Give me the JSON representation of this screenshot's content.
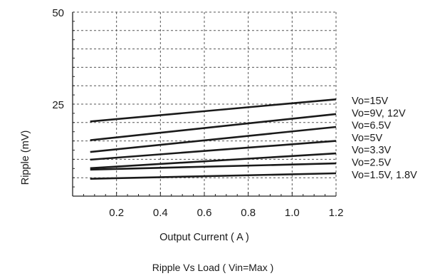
{
  "chart_data": {
    "type": "line",
    "title": "Ripple  Vs Load ( Vin=Max )",
    "xlabel": "Output Current ( A )",
    "ylabel": "Ripple (mV)",
    "xlim": [
      0,
      1.2
    ],
    "ylim": [
      0,
      50
    ],
    "x_ticks": [
      0.2,
      0.4,
      0.6,
      0.8,
      1.0,
      1.2
    ],
    "x_tick_labels": [
      "0.2",
      "0.4",
      "0.6",
      "0.8",
      "1.0",
      "1.2"
    ],
    "y_ticks": [
      25,
      50
    ],
    "y_tick_labels": [
      "25",
      "50"
    ],
    "grid": true,
    "grid_style": "dashed",
    "legend": "labels at right end of each line",
    "line_color": "#1a1a1a",
    "grid_color": "#555555",
    "series": [
      {
        "name": "Vo=15V",
        "x": [
          0.08,
          1.2
        ],
        "y": [
          20.3,
          26.3
        ]
      },
      {
        "name": "Vo=9V, 12V",
        "x": [
          0.08,
          1.2
        ],
        "y": [
          15.2,
          22.3
        ]
      },
      {
        "name": "Vo=6.5V",
        "x": [
          0.08,
          1.2
        ],
        "y": [
          12.0,
          18.8
        ]
      },
      {
        "name": "Vo=5V",
        "x": [
          0.08,
          1.2
        ],
        "y": [
          9.9,
          15.0
        ]
      },
      {
        "name": "Vo=3.3V",
        "x": [
          0.08,
          1.2
        ],
        "y": [
          7.6,
          11.6
        ]
      },
      {
        "name": "Vo=2.5V",
        "x": [
          0.08,
          1.2
        ],
        "y": [
          7.2,
          8.9
        ]
      },
      {
        "name": "Vo=1.5V, 1.8V",
        "x": [
          0.08,
          1.2
        ],
        "y": [
          4.7,
          6.2
        ]
      }
    ]
  }
}
